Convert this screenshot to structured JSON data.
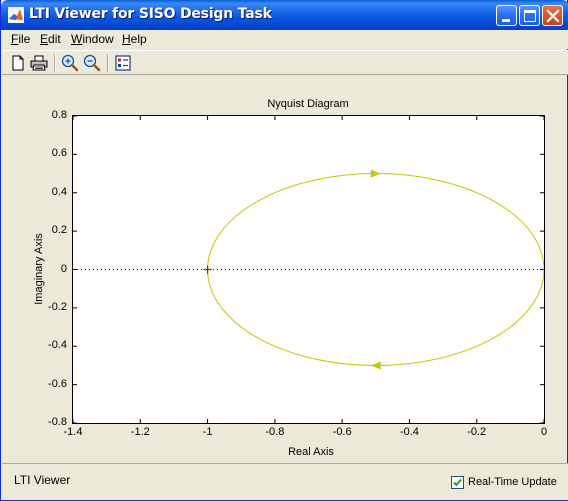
{
  "window": {
    "title": "LTI Viewer for SISO Design Task",
    "app_icon": "matlab-logo-icon",
    "controls": [
      "minimize-icon",
      "maximize-icon",
      "close-icon"
    ]
  },
  "menu": {
    "items": [
      {
        "mnemonic": "F",
        "rest": "ile"
      },
      {
        "mnemonic": "E",
        "rest": "dit"
      },
      {
        "mnemonic": "W",
        "rest": "indow"
      },
      {
        "mnemonic": "H",
        "rest": "elp"
      }
    ]
  },
  "toolbar": {
    "buttons": [
      "new-file-icon",
      "print-icon",
      "zoom-in-icon",
      "zoom-out-icon",
      "plot-config-icon"
    ]
  },
  "status": {
    "text": "LTI Viewer",
    "realtime_label": "Real-Time Update",
    "realtime_checked": true
  },
  "chart_data": {
    "type": "line",
    "title": "Nyquist Diagram",
    "xlabel": "Real Axis",
    "ylabel": "Imaginary Axis",
    "xlim": [
      -1.4,
      0
    ],
    "ylim": [
      -0.8,
      0.8
    ],
    "xticks": [
      "-1.4",
      "-1.2",
      "-1",
      "-0.8",
      "-0.6",
      "-0.4",
      "-0.2",
      "0"
    ],
    "yticks": [
      "0.8",
      "0.6",
      "0.4",
      "0.2",
      "0",
      "-0.2",
      "-0.4",
      "-0.6",
      "-0.8"
    ],
    "series": [
      {
        "curve": "closed-loop ellipse",
        "color": "#c8c800",
        "center": [
          -0.5,
          0
        ],
        "radius_x": 0.5,
        "radius_y": 0.5
      }
    ],
    "critical_point": {
      "x": -1,
      "y": 0,
      "marker": "+",
      "color": "#cc0000"
    },
    "zero_line": {
      "style": "dotted",
      "y": 0
    },
    "arrows": [
      {
        "x": -0.5,
        "y": 0.5,
        "direction": "right"
      },
      {
        "x": -0.5,
        "y": -0.5,
        "direction": "left"
      }
    ],
    "grid": false
  }
}
